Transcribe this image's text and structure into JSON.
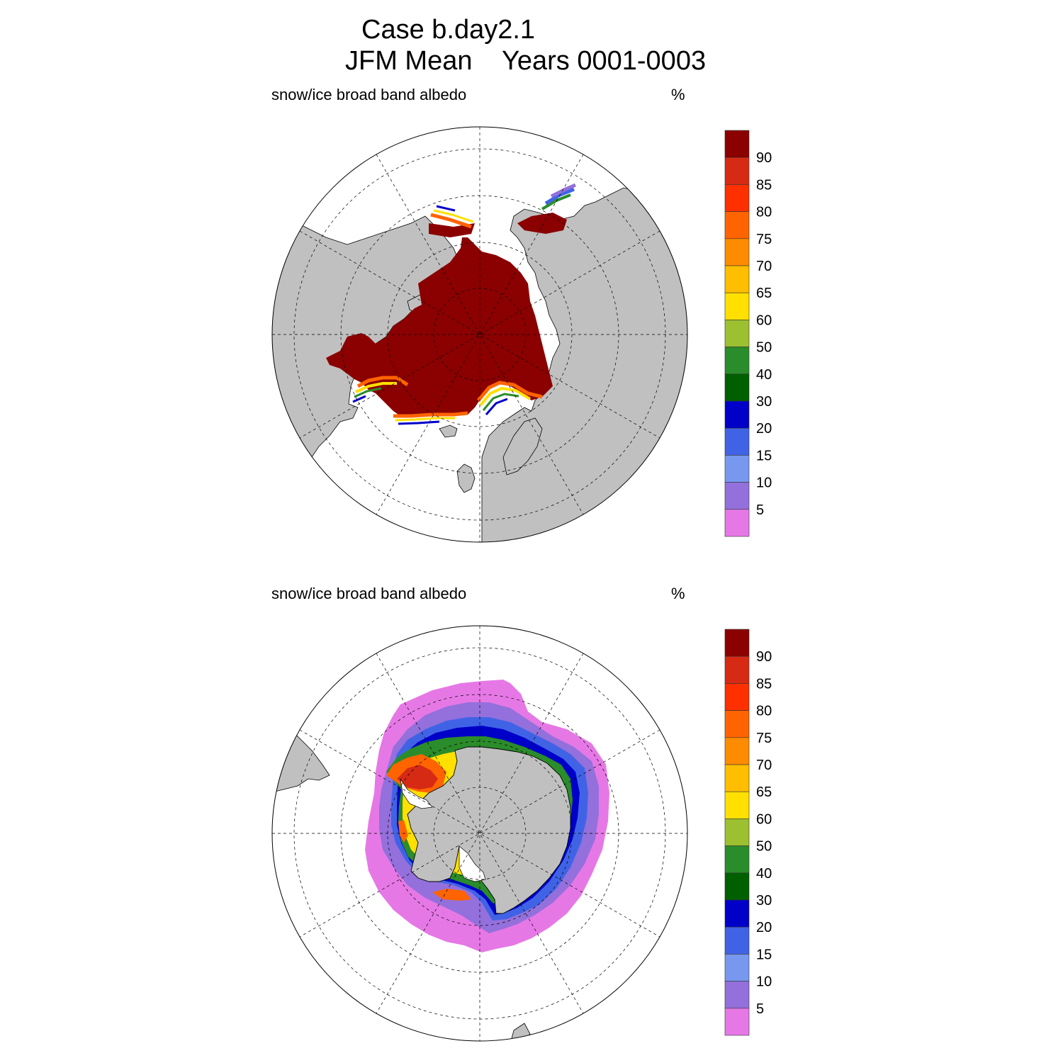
{
  "figure": {
    "title_line1": "Case b.day2.1",
    "title_line2": "JFM Mean    Years 0001-0003"
  },
  "panels": [
    {
      "hemisphere": "north",
      "label": "snow/ice broad band albedo",
      "units": "%"
    },
    {
      "hemisphere": "south",
      "label": "snow/ice broad band albedo",
      "units": "%"
    }
  ],
  "colorbar": {
    "tick_labels": [
      "90",
      "85",
      "80",
      "75",
      "70",
      "65",
      "60",
      "50",
      "40",
      "30",
      "20",
      "15",
      "10",
      "5"
    ],
    "colors": [
      "#8b0000",
      "#d62a14",
      "#ff3000",
      "#ff6400",
      "#ff8c00",
      "#ffbe00",
      "#ffe000",
      "#9dc030",
      "#2a8c2a",
      "#006000",
      "#0000c8",
      "#4063e6",
      "#7898f0",
      "#9370db",
      "#e678e6"
    ]
  },
  "colors": {
    "land": "#c0c0c0",
    "ocean": "#ffffff",
    "ice_core": "#8b0000"
  }
}
